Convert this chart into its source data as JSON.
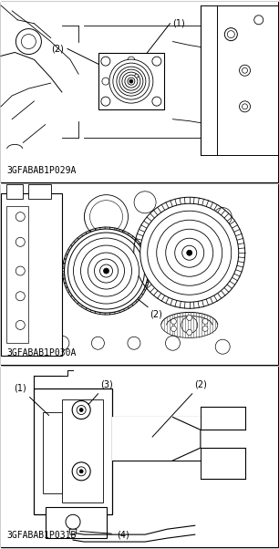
{
  "figure_width": 3.06,
  "figure_height": 6.02,
  "dpi": 100,
  "bg_color": "#ffffff",
  "panel1_label": "3GFABAB1P029A",
  "panel2_label": "3GFABAB1P030A",
  "panel3_label": "3GFABAB1P031B",
  "label_fontsize": 7.5,
  "annot_fontsize": 7.5
}
